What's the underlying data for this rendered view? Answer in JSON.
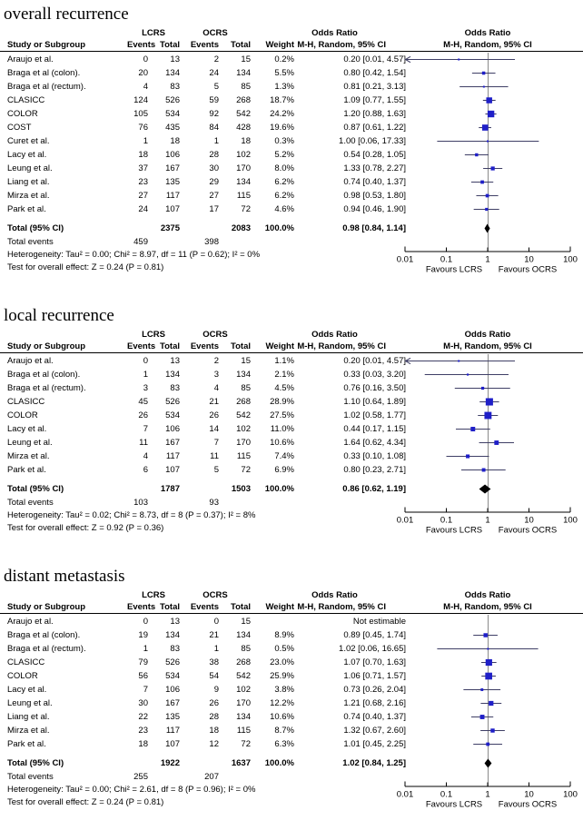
{
  "colors": {
    "marker_blue": "#1F1FC8",
    "ci_line": "#3F3F66",
    "summary_diamond": "#000000",
    "reference_line": "#8A8A8A",
    "axis": "#000000"
  },
  "chart_data": [
    {
      "type": "forest",
      "title": "overall recurrence",
      "columns": {
        "study": "Study or Subgroup",
        "group1": "LCRS",
        "group2": "OCRS",
        "events": "Events",
        "total": "Total",
        "weight": "Weight",
        "or_header": "Odds Ratio",
        "or_sub": "M-H, Random, 95% CI"
      },
      "studies": [
        {
          "name": "Araujo et al.",
          "e1": 0,
          "t1": 13,
          "e2": 2,
          "t2": 15,
          "weight": "0.2%",
          "ci_text": "0.20 [0.01, 4.57]",
          "or": 0.2,
          "lo": 0.01,
          "hi": 4.57
        },
        {
          "name": "Braga et al (colon).",
          "e1": 20,
          "t1": 134,
          "e2": 24,
          "t2": 134,
          "weight": "5.5%",
          "ci_text": "0.80 [0.42, 1.54]",
          "or": 0.8,
          "lo": 0.42,
          "hi": 1.54
        },
        {
          "name": "Braga et al (rectum).",
          "e1": 4,
          "t1": 83,
          "e2": 5,
          "t2": 85,
          "weight": "1.3%",
          "ci_text": "0.81 [0.21, 3.13]",
          "or": 0.81,
          "lo": 0.21,
          "hi": 3.13
        },
        {
          "name": "CLASICC",
          "e1": 124,
          "t1": 526,
          "e2": 59,
          "t2": 268,
          "weight": "18.7%",
          "ci_text": "1.09 [0.77, 1.55]",
          "or": 1.09,
          "lo": 0.77,
          "hi": 1.55
        },
        {
          "name": "COLOR",
          "e1": 105,
          "t1": 534,
          "e2": 92,
          "t2": 542,
          "weight": "24.2%",
          "ci_text": "1.20 [0.88, 1.63]",
          "or": 1.2,
          "lo": 0.88,
          "hi": 1.63
        },
        {
          "name": "COST",
          "e1": 76,
          "t1": 435,
          "e2": 84,
          "t2": 428,
          "weight": "19.6%",
          "ci_text": "0.87 [0.61, 1.22]",
          "or": 0.87,
          "lo": 0.61,
          "hi": 1.22
        },
        {
          "name": "Curet et al.",
          "e1": 1,
          "t1": 18,
          "e2": 1,
          "t2": 18,
          "weight": "0.3%",
          "ci_text": "1.00 [0.06, 17.33]",
          "or": 1.0,
          "lo": 0.06,
          "hi": 17.33
        },
        {
          "name": "Lacy et al.",
          "e1": 18,
          "t1": 106,
          "e2": 28,
          "t2": 102,
          "weight": "5.2%",
          "ci_text": "0.54 [0.28, 1.05]",
          "or": 0.54,
          "lo": 0.28,
          "hi": 1.05
        },
        {
          "name": "Leung et al.",
          "e1": 37,
          "t1": 167,
          "e2": 30,
          "t2": 170,
          "weight": "8.0%",
          "ci_text": "1.33 [0.78, 2.27]",
          "or": 1.33,
          "lo": 0.78,
          "hi": 2.27
        },
        {
          "name": "Liang et al.",
          "e1": 23,
          "t1": 135,
          "e2": 29,
          "t2": 134,
          "weight": "6.2%",
          "ci_text": "0.74 [0.40, 1.37]",
          "or": 0.74,
          "lo": 0.4,
          "hi": 1.37
        },
        {
          "name": "Mirza et al.",
          "e1": 27,
          "t1": 117,
          "e2": 27,
          "t2": 115,
          "weight": "6.2%",
          "ci_text": "0.98 [0.53, 1.80]",
          "or": 0.98,
          "lo": 0.53,
          "hi": 1.8
        },
        {
          "name": "Park et al.",
          "e1": 24,
          "t1": 107,
          "e2": 17,
          "t2": 72,
          "weight": "4.6%",
          "ci_text": "0.94 [0.46, 1.90]",
          "or": 0.94,
          "lo": 0.46,
          "hi": 1.9
        }
      ],
      "total_row": {
        "label": "Total (95% CI)",
        "t1": 2375,
        "t2": 2083,
        "weight": "100.0%",
        "ci_text": "0.98 [0.84, 1.14]",
        "or": 0.98,
        "lo": 0.84,
        "hi": 1.14
      },
      "total_events": {
        "label": "Total events",
        "e1": 459,
        "e2": 398
      },
      "heterogeneity": "Heterogeneity: Tau² = 0.00; Chi² = 8.97, df = 11 (P = 0.62); I² = 0%",
      "overall_effect": "Test for overall effect: Z = 0.24 (P = 0.81)",
      "axis": {
        "scale": "log",
        "ticks": [
          "0.01",
          "0.1",
          "1",
          "10",
          "100"
        ],
        "favours_left": "Favours LCRS",
        "favours_right": "Favours OCRS"
      }
    },
    {
      "type": "forest",
      "title": "local recurrence",
      "columns": {
        "study": "Study or Subgroup",
        "group1": "LCRS",
        "group2": "OCRS",
        "events": "Events",
        "total": "Total",
        "weight": "Weight",
        "or_header": "Odds Ratio",
        "or_sub": "M-H, Random, 95% CI"
      },
      "studies": [
        {
          "name": "Araujo et al.",
          "e1": 0,
          "t1": 13,
          "e2": 2,
          "t2": 15,
          "weight": "1.1%",
          "ci_text": "0.20 [0.01, 4.57]",
          "or": 0.2,
          "lo": 0.01,
          "hi": 4.57
        },
        {
          "name": "Braga et al (colon).",
          "e1": 1,
          "t1": 134,
          "e2": 3,
          "t2": 134,
          "weight": "2.1%",
          "ci_text": "0.33 [0.03, 3.20]",
          "or": 0.33,
          "lo": 0.03,
          "hi": 3.2
        },
        {
          "name": "Braga et al (rectum).",
          "e1": 3,
          "t1": 83,
          "e2": 4,
          "t2": 85,
          "weight": "4.5%",
          "ci_text": "0.76 [0.16, 3.50]",
          "or": 0.76,
          "lo": 0.16,
          "hi": 3.5
        },
        {
          "name": "CLASICC",
          "e1": 45,
          "t1": 526,
          "e2": 21,
          "t2": 268,
          "weight": "28.9%",
          "ci_text": "1.10 [0.64, 1.89]",
          "or": 1.1,
          "lo": 0.64,
          "hi": 1.89
        },
        {
          "name": "COLOR",
          "e1": 26,
          "t1": 534,
          "e2": 26,
          "t2": 542,
          "weight": "27.5%",
          "ci_text": "1.02 [0.58, 1.77]",
          "or": 1.02,
          "lo": 0.58,
          "hi": 1.77
        },
        {
          "name": "Lacy et al.",
          "e1": 7,
          "t1": 106,
          "e2": 14,
          "t2": 102,
          "weight": "11.0%",
          "ci_text": "0.44 [0.17, 1.15]",
          "or": 0.44,
          "lo": 0.17,
          "hi": 1.15
        },
        {
          "name": "Leung et al.",
          "e1": 11,
          "t1": 167,
          "e2": 7,
          "t2": 170,
          "weight": "10.6%",
          "ci_text": "1.64 [0.62, 4.34]",
          "or": 1.64,
          "lo": 0.62,
          "hi": 4.34
        },
        {
          "name": "Mirza et al.",
          "e1": 4,
          "t1": 117,
          "e2": 11,
          "t2": 115,
          "weight": "7.4%",
          "ci_text": "0.33 [0.10, 1.08]",
          "or": 0.33,
          "lo": 0.1,
          "hi": 1.08
        },
        {
          "name": "Park et al.",
          "e1": 6,
          "t1": 107,
          "e2": 5,
          "t2": 72,
          "weight": "6.9%",
          "ci_text": "0.80 [0.23, 2.71]",
          "or": 0.8,
          "lo": 0.23,
          "hi": 2.71
        }
      ],
      "total_row": {
        "label": "Total (95% CI)",
        "t1": 1787,
        "t2": 1503,
        "weight": "100.0%",
        "ci_text": "0.86 [0.62, 1.19]",
        "or": 0.86,
        "lo": 0.62,
        "hi": 1.19
      },
      "total_events": {
        "label": "Total events",
        "e1": 103,
        "e2": 93
      },
      "heterogeneity": "Heterogeneity: Tau² = 0.02; Chi² = 8.73, df = 8 (P = 0.37); I² = 8%",
      "overall_effect": "Test for overall effect: Z = 0.92 (P = 0.36)",
      "axis": {
        "scale": "log",
        "ticks": [
          "0.01",
          "0.1",
          "1",
          "10",
          "100"
        ],
        "favours_left": "Favours LCRS",
        "favours_right": "Favours OCRS"
      }
    },
    {
      "type": "forest",
      "title": "distant metastasis",
      "columns": {
        "study": "Study or Subgroup",
        "group1": "LCRS",
        "group2": "OCRS",
        "events": "Events",
        "total": "Total",
        "weight": "Weight",
        "or_header": "Odds Ratio",
        "or_sub": "M-H, Random, 95% CI"
      },
      "studies": [
        {
          "name": "Araujo et al.",
          "e1": 0,
          "t1": 13,
          "e2": 0,
          "t2": 15,
          "weight": "",
          "ci_text": "Not estimable",
          "or": null,
          "lo": null,
          "hi": null
        },
        {
          "name": "Braga et al (colon).",
          "e1": 19,
          "t1": 134,
          "e2": 21,
          "t2": 134,
          "weight": "8.9%",
          "ci_text": "0.89 [0.45, 1.74]",
          "or": 0.89,
          "lo": 0.45,
          "hi": 1.74
        },
        {
          "name": "Braga et al (rectum).",
          "e1": 1,
          "t1": 83,
          "e2": 1,
          "t2": 85,
          "weight": "0.5%",
          "ci_text": "1.02 [0.06, 16.65]",
          "or": 1.02,
          "lo": 0.06,
          "hi": 16.65
        },
        {
          "name": "CLASICC",
          "e1": 79,
          "t1": 526,
          "e2": 38,
          "t2": 268,
          "weight": "23.0%",
          "ci_text": "1.07 [0.70, 1.63]",
          "or": 1.07,
          "lo": 0.7,
          "hi": 1.63
        },
        {
          "name": "COLOR",
          "e1": 56,
          "t1": 534,
          "e2": 54,
          "t2": 542,
          "weight": "25.9%",
          "ci_text": "1.06 [0.71, 1.57]",
          "or": 1.06,
          "lo": 0.71,
          "hi": 1.57
        },
        {
          "name": "Lacy et al.",
          "e1": 7,
          "t1": 106,
          "e2": 9,
          "t2": 102,
          "weight": "3.8%",
          "ci_text": "0.73 [0.26, 2.04]",
          "or": 0.73,
          "lo": 0.26,
          "hi": 2.04
        },
        {
          "name": "Leung et al.",
          "e1": 30,
          "t1": 167,
          "e2": 26,
          "t2": 170,
          "weight": "12.2%",
          "ci_text": "1.21 [0.68, 2.16]",
          "or": 1.21,
          "lo": 0.68,
          "hi": 2.16
        },
        {
          "name": "Liang et al.",
          "e1": 22,
          "t1": 135,
          "e2": 28,
          "t2": 134,
          "weight": "10.6%",
          "ci_text": "0.74 [0.40, 1.37]",
          "or": 0.74,
          "lo": 0.4,
          "hi": 1.37
        },
        {
          "name": "Mirza et al.",
          "e1": 23,
          "t1": 117,
          "e2": 18,
          "t2": 115,
          "weight": "8.7%",
          "ci_text": "1.32 [0.67, 2.60]",
          "or": 1.32,
          "lo": 0.67,
          "hi": 2.6
        },
        {
          "name": "Park et al.",
          "e1": 18,
          "t1": 107,
          "e2": 12,
          "t2": 72,
          "weight": "6.3%",
          "ci_text": "1.01 [0.45, 2.25]",
          "or": 1.01,
          "lo": 0.45,
          "hi": 2.25
        }
      ],
      "total_row": {
        "label": "Total (95% CI)",
        "t1": 1922,
        "t2": 1637,
        "weight": "100.0%",
        "ci_text": "1.02 [0.84, 1.25]",
        "or": 1.02,
        "lo": 0.84,
        "hi": 1.25
      },
      "total_events": {
        "label": "Total events",
        "e1": 255,
        "e2": 207
      },
      "heterogeneity": "Heterogeneity: Tau² = 0.00; Chi² = 2.61, df = 8 (P = 0.96); I² = 0%",
      "overall_effect": "Test for overall effect: Z = 0.24 (P = 0.81)",
      "axis": {
        "scale": "log",
        "ticks": [
          "0.01",
          "0.1",
          "1",
          "10",
          "100"
        ],
        "favours_left": "Favours LCRS",
        "favours_right": "Favours OCRS"
      }
    }
  ]
}
